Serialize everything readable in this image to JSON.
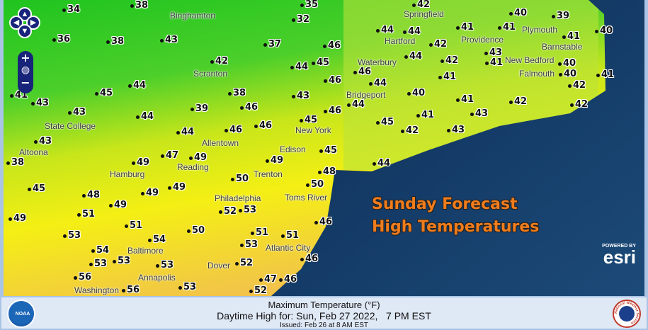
{
  "map": {
    "temps": [
      "34",
      "38",
      "35",
      "36",
      "38",
      "43",
      "32",
      "37",
      "46",
      "42",
      "44",
      "45",
      "46",
      "45",
      "44",
      "41",
      "43",
      "39",
      "38",
      "46",
      "43",
      "43",
      "44",
      "44",
      "46",
      "46",
      "46",
      "45",
      "43",
      "38",
      "47",
      "49",
      "49",
      "49",
      "50",
      "45",
      "48",
      "45",
      "48",
      "49",
      "49",
      "49",
      "51",
      "49",
      "51",
      "50",
      "52",
      "53",
      "50",
      "46",
      "53",
      "54",
      "53",
      "53",
      "53",
      "54",
      "56",
      "56",
      "53",
      "53",
      "51",
      "51",
      "46",
      "52",
      "47",
      "46",
      "52",
      "42",
      "40",
      "39",
      "40",
      "44",
      "44",
      "42",
      "41",
      "41",
      "43",
      "41",
      "42",
      "44",
      "46",
      "44",
      "40",
      "41",
      "41",
      "40",
      "40",
      "42",
      "41",
      "44",
      "45",
      "41",
      "42",
      "41",
      "43",
      "43",
      "42",
      "42",
      "44"
    ],
    "cities": [
      "Binghamton",
      "Springfield",
      "Scranton",
      "Hartford",
      "Providence",
      "Plymouth",
      "Barnstable",
      "New Bedford",
      "Falmouth",
      "Waterbury",
      "Bridgeport",
      "State College",
      "Allentown",
      "New York",
      "Edison",
      "Altoona",
      "Hamburg",
      "Reading",
      "Trenton",
      "Philadelphia",
      "Toms River",
      "Atlantic City",
      "Baltimore",
      "Dover",
      "Annapolis",
      "Washington"
    ],
    "shields": [
      "86",
      "6",
      "15",
      "219",
      "17",
      "84",
      "80",
      "476",
      "22",
      "78",
      "70",
      "1",
      "95",
      "81"
    ]
  },
  "overlay": {
    "line1": "Sunday Forecast",
    "line2": "High Temperatures"
  },
  "esri": {
    "powered": "POWERED BY",
    "brand": "esri"
  },
  "footer": {
    "line1": "Maximum Temperature (°F)",
    "line2": "Daytime High for: Sun, Feb 27 2022,   7 PM EST",
    "line3": "Issued: Feb 26 at 8 AM EST",
    "noaa": "NOAA",
    "nws": "National Weather Service"
  },
  "colors": {
    "ocean": "#12315a",
    "land_cool": "#2ec92e",
    "land_warm": "#f2ec10",
    "land_hot": "#f2b640",
    "title": "#f07c1c"
  }
}
